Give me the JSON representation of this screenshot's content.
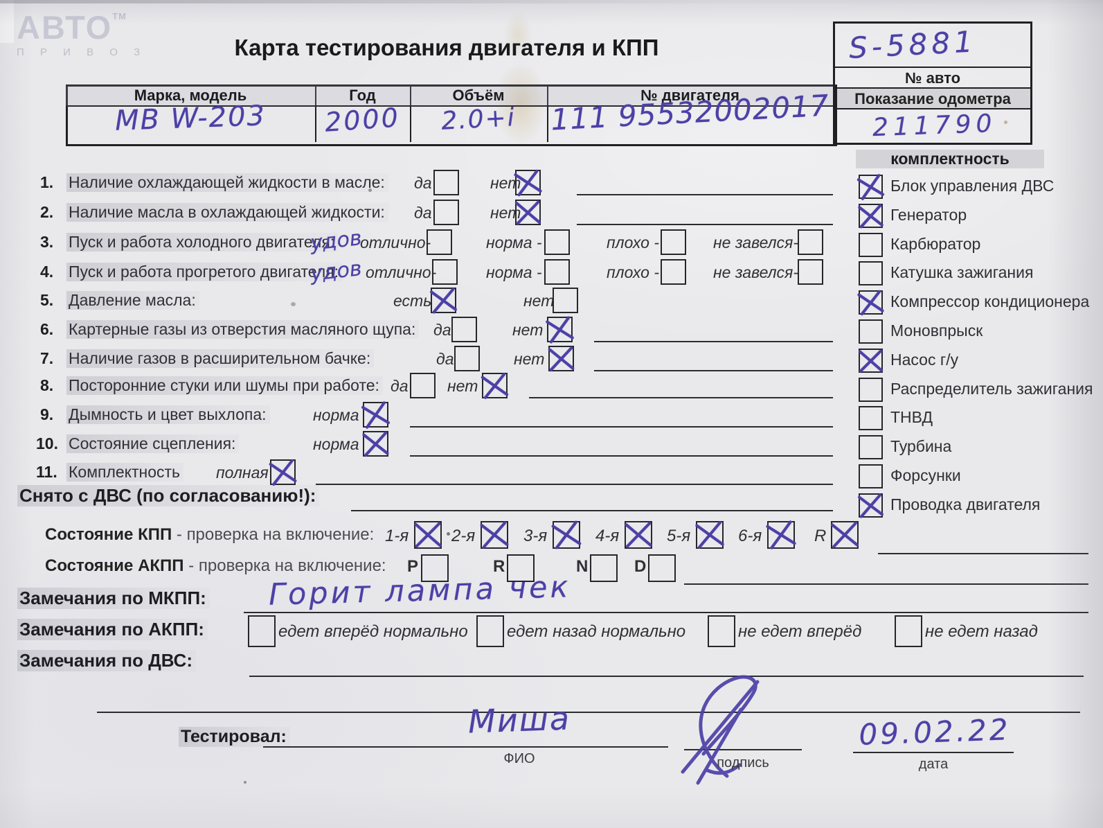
{
  "logo": {
    "brand": "АВТО",
    "tm": "ТМ",
    "sub": "П Р И В О З"
  },
  "title": "Карта тестирования двигателя  и КПП",
  "vehicle_box": {
    "auto_number_value": "S-5881",
    "auto_number_label": "№ авто",
    "odometer_label": "Показание одометра",
    "odometer_value": "211790"
  },
  "header_table": {
    "columns": [
      {
        "label": "Марка, модель",
        "value": "МВ W-203"
      },
      {
        "label": "Год",
        "value": "2000"
      },
      {
        "label": "Объём",
        "value": "2.0+i"
      },
      {
        "label": "№ двигателя",
        "value": "111 95532002017"
      }
    ]
  },
  "completeness": {
    "title": "комплектность",
    "items": [
      {
        "label": "Блок управления ДВС",
        "checked": true
      },
      {
        "label": "Генератор",
        "checked": true
      },
      {
        "label": "Карбюратор",
        "checked": false
      },
      {
        "label": "Катушка зажигания",
        "checked": false
      },
      {
        "label": "Компрессор кондиционера",
        "checked": true
      },
      {
        "label": "Моновпрыск",
        "checked": false
      },
      {
        "label": "Насос г/у",
        "checked": true
      },
      {
        "label": "Распределитель зажигания",
        "checked": false
      },
      {
        "label": "ТНВД",
        "checked": false
      },
      {
        "label": "Турбина",
        "checked": false
      },
      {
        "label": "Форсунки",
        "checked": false
      },
      {
        "label": "Проводка двигателя",
        "checked": true
      }
    ]
  },
  "checklist": [
    {
      "num": "1.",
      "label": "Наличие охлаждающей жидкости в масле:",
      "handwriting": "",
      "options": [
        {
          "label": "да",
          "checked": false
        },
        {
          "label": "нет",
          "checked": true
        }
      ]
    },
    {
      "num": "2.",
      "label": "Наличие масла в охлаждающей жидкости:",
      "handwriting": "",
      "options": [
        {
          "label": "да",
          "checked": false
        },
        {
          "label": "нет",
          "checked": true
        }
      ]
    },
    {
      "num": "3.",
      "label": "Пуск и работа холодного двигателя:",
      "handwriting": "удов",
      "options": [
        {
          "label": "отлично-",
          "checked": false
        },
        {
          "label": "норма -",
          "checked": false
        },
        {
          "label": "плохо -",
          "checked": false
        },
        {
          "label": "не завелся-",
          "checked": false
        }
      ]
    },
    {
      "num": "4.",
      "label": "Пуск и работа прогретого двигателя:",
      "handwriting": "удов",
      "options": [
        {
          "label": "отлично-",
          "checked": false
        },
        {
          "label": "норма -",
          "checked": false
        },
        {
          "label": "плохо -",
          "checked": false
        },
        {
          "label": "не завелся-",
          "checked": false
        }
      ]
    },
    {
      "num": "5.",
      "label": "Давление масла:",
      "handwriting": "",
      "options": [
        {
          "label": "есть",
          "checked": true
        },
        {
          "label": "нет",
          "checked": false
        }
      ]
    },
    {
      "num": "6.",
      "label": "Картерные газы из отверстия масляного щупа:",
      "handwriting": "",
      "options": [
        {
          "label": "да",
          "checked": false
        },
        {
          "label": "нет",
          "checked": true
        }
      ]
    },
    {
      "num": "7.",
      "label": "Наличие газов в расширительном бачке:",
      "handwriting": "",
      "options": [
        {
          "label": "да",
          "checked": false
        },
        {
          "label": "нет",
          "checked": true
        }
      ]
    },
    {
      "num": "8.",
      "label": "Посторонние стуки или шумы при работе:",
      "handwriting": "",
      "options": [
        {
          "label": "да",
          "checked": false
        },
        {
          "label": "нет",
          "checked": true
        }
      ]
    },
    {
      "num": "9.",
      "label": "Дымность и цвет выхлопа:",
      "handwriting": "",
      "options": [
        {
          "label": "норма",
          "checked": true
        }
      ]
    },
    {
      "num": "10.",
      "label": "Состояние сцепления:",
      "handwriting": "",
      "options": [
        {
          "label": "норма",
          "checked": true
        }
      ]
    },
    {
      "num": "11.",
      "label": "Комплектность",
      "handwriting": "",
      "options": [
        {
          "label": "полная",
          "checked": true
        }
      ]
    }
  ],
  "removed_section": {
    "label": "Снято с ДВС (по согласованию!):"
  },
  "gearbox": {
    "label_bold": "Состояние КПП",
    "label_rest": " - проверка на включение:",
    "gears": [
      {
        "label": "1-я",
        "checked": true
      },
      {
        "label": "2-я",
        "checked": true
      },
      {
        "label": "3-я",
        "checked": true
      },
      {
        "label": "4-я",
        "checked": true
      },
      {
        "label": "5-я",
        "checked": true
      },
      {
        "label": "6-я",
        "checked": true
      },
      {
        "label": "R",
        "checked": true
      }
    ]
  },
  "auto_gearbox": {
    "label_bold": "Состояние АКПП",
    "label_rest": " - проверка на включение:",
    "positions": [
      {
        "label": "P",
        "checked": false
      },
      {
        "label": "R",
        "checked": false
      },
      {
        "label": "N",
        "checked": false
      },
      {
        "label": "D",
        "checked": false
      }
    ]
  },
  "remarks": {
    "mkpp_label": "Замечания по МКПП:",
    "mkpp_value": "Горит лампа чек",
    "akpp_label": "Замечания по АКПП:",
    "akpp_options": [
      {
        "label": "едет вперёд нормально",
        "checked": false
      },
      {
        "label": "едет назад нормально",
        "checked": false
      },
      {
        "label": "не едет вперёд",
        "checked": false
      },
      {
        "label": "не едет назад",
        "checked": false
      }
    ],
    "dvs_label": "Замечания по ДВС:"
  },
  "footer": {
    "tested_label": "Тестировал:",
    "name_value": "Миша",
    "name_caption": "ФИО",
    "signature_caption": "подпись",
    "date_value": "09.02.22",
    "date_caption": "дата"
  },
  "colors": {
    "ink": "#4c40a6",
    "paper": "#e9e9ec",
    "band": "#d4d4d8"
  }
}
